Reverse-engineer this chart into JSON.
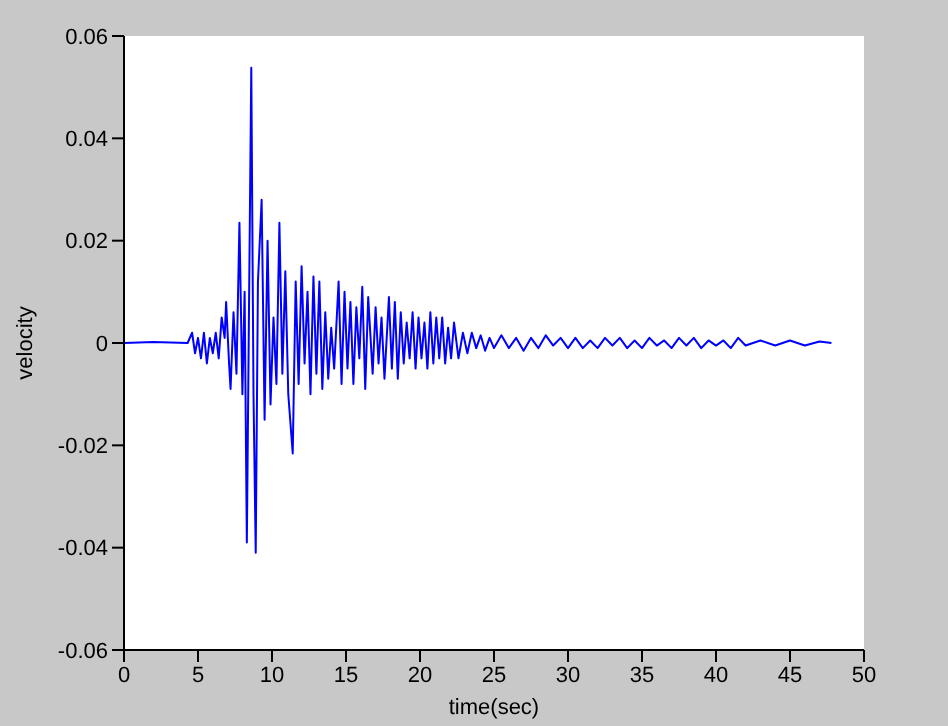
{
  "chart_data": {
    "type": "line",
    "xlabel": "time(sec)",
    "ylabel": "velocity",
    "xlim": [
      0,
      50
    ],
    "xticks": [
      0,
      5,
      10,
      15,
      20,
      25,
      30,
      35,
      40,
      45,
      50
    ],
    "ylim": [
      -0.06,
      0.06
    ],
    "yticks": [
      -0.06,
      -0.04,
      -0.02,
      0,
      0.02,
      0.04,
      0.06
    ],
    "x": [
      0,
      2,
      4.3,
      4.6,
      4.8,
      5.0,
      5.2,
      5.4,
      5.6,
      5.8,
      6.0,
      6.2,
      6.4,
      6.6,
      6.8,
      6.9,
      7.1,
      7.2,
      7.4,
      7.6,
      7.8,
      8.0,
      8.15,
      8.3,
      8.45,
      8.6,
      8.75,
      8.9,
      9.05,
      9.3,
      9.5,
      9.7,
      9.9,
      10.1,
      10.3,
      10.5,
      10.7,
      10.9,
      11.1,
      11.4,
      11.6,
      11.8,
      12.0,
      12.2,
      12.4,
      12.6,
      12.8,
      13.0,
      13.2,
      13.4,
      13.6,
      13.8,
      14.0,
      14.2,
      14.5,
      14.7,
      14.9,
      15.1,
      15.3,
      15.5,
      15.7,
      15.9,
      16.1,
      16.3,
      16.5,
      16.8,
      17.0,
      17.2,
      17.4,
      17.6,
      17.9,
      18.1,
      18.3,
      18.5,
      18.7,
      18.9,
      19.1,
      19.3,
      19.5,
      19.7,
      19.9,
      20.1,
      20.3,
      20.5,
      20.7,
      20.9,
      21.1,
      21.3,
      21.5,
      21.7,
      21.9,
      22.1,
      22.3,
      22.6,
      22.9,
      23.2,
      23.5,
      23.8,
      24.1,
      24.4,
      24.7,
      25.0,
      25.5,
      26,
      26.5,
      27,
      27.5,
      28,
      28.5,
      29,
      29.5,
      30,
      30.5,
      31,
      31.5,
      32,
      32.5,
      33,
      33.5,
      34,
      34.5,
      35,
      35.5,
      36,
      36.5,
      37,
      37.5,
      38,
      38.5,
      39,
      39.5,
      40,
      40.5,
      41,
      41.5,
      42,
      43,
      44,
      45,
      46,
      47,
      47.8
    ],
    "series": [
      {
        "color": "#0000ff",
        "values": [
          0,
          0.0002,
          0,
          0.002,
          -0.002,
          0.001,
          -0.003,
          0.002,
          -0.004,
          0.001,
          -0.002,
          0.002,
          -0.003,
          0.005,
          0.001,
          0.008,
          -0.004,
          -0.009,
          0.006,
          -0.006,
          0.0235,
          -0.01,
          0.01,
          -0.039,
          0.008,
          0.0538,
          -0.01,
          -0.041,
          0.012,
          0.028,
          -0.015,
          0.02,
          -0.012,
          0.005,
          -0.008,
          0.0235,
          -0.006,
          0.014,
          -0.01,
          -0.0216,
          0.012,
          -0.008,
          0.015,
          -0.004,
          0.01,
          -0.01,
          0.013,
          -0.006,
          0.012,
          -0.009,
          0.006,
          -0.007,
          0.003,
          -0.005,
          0.012,
          -0.008,
          0.01,
          -0.005,
          0.008,
          -0.008,
          0.007,
          -0.003,
          0.011,
          -0.009,
          0.009,
          -0.006,
          0.007,
          -0.004,
          0.005,
          -0.007,
          0.009,
          -0.005,
          0.008,
          -0.007,
          0.006,
          -0.004,
          0.004,
          -0.003,
          0.006,
          -0.005,
          0.005,
          -0.003,
          0.004,
          -0.005,
          0.006,
          -0.004,
          0.005,
          -0.003,
          0.005,
          -0.004,
          0.003,
          -0.003,
          0.004,
          -0.003,
          0.002,
          -0.002,
          0.002,
          -0.001,
          0.0015,
          -0.0015,
          0.001,
          -0.001,
          0.0015,
          -0.001,
          0.001,
          -0.0015,
          0.001,
          -0.001,
          0.0015,
          -0.0005,
          0.001,
          -0.001,
          0.001,
          -0.001,
          0.0005,
          -0.001,
          0.001,
          -0.0005,
          0.001,
          -0.001,
          0.0005,
          -0.001,
          0.001,
          -0.0005,
          0.0005,
          -0.001,
          0.001,
          -0.0005,
          0.001,
          -0.001,
          0.0005,
          -0.0005,
          0.0005,
          -0.001,
          0.001,
          -0.0005,
          0.0005,
          -0.0005,
          0.0005,
          -0.0005,
          0.0003,
          0
        ]
      }
    ]
  }
}
